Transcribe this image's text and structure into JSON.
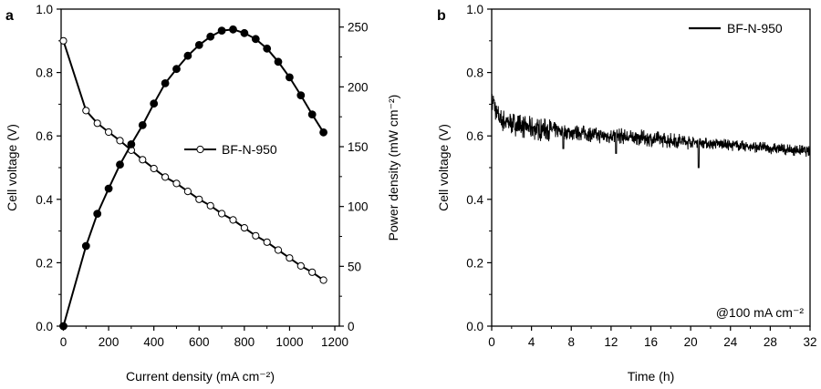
{
  "chart_data": [
    {
      "panel": "a",
      "type": "line",
      "title": "",
      "xlabel": "Current density (mA cm⁻²)",
      "ylabel": "Cell voltage (V)",
      "y2label": "Power density (mW cm⁻²)",
      "xlim": [
        -10,
        1220
      ],
      "ylim": [
        0,
        1.0
      ],
      "y2lim": [
        0,
        265
      ],
      "xticks": [
        "0",
        "200",
        "400",
        "600",
        "800",
        "1000",
        "1200"
      ],
      "yticks": [
        "0.0",
        "0.2",
        "0.4",
        "0.6",
        "0.8",
        "1.0"
      ],
      "y2ticks": [
        "0",
        "50",
        "100",
        "150",
        "200",
        "250"
      ],
      "legend": {
        "label": "BF-N-950",
        "placement": "center-right"
      },
      "series": [
        {
          "name": "BF-N-950",
          "axis": "left",
          "marker": "open-circle",
          "x": [
            0,
            100,
            150,
            200,
            250,
            300,
            350,
            400,
            450,
            500,
            550,
            600,
            650,
            700,
            750,
            800,
            850,
            900,
            950,
            1000,
            1050,
            1100,
            1150
          ],
          "y": [
            0.9,
            0.68,
            0.64,
            0.612,
            0.585,
            0.555,
            0.525,
            0.497,
            0.47,
            0.45,
            0.425,
            0.4,
            0.38,
            0.355,
            0.335,
            0.31,
            0.285,
            0.265,
            0.24,
            0.215,
            0.19,
            0.17,
            0.145
          ]
        },
        {
          "axis": "right",
          "marker": "filled-circle",
          "x": [
            0,
            100,
            150,
            200,
            250,
            300,
            350,
            400,
            450,
            500,
            550,
            600,
            650,
            700,
            750,
            800,
            850,
            900,
            950,
            1000,
            1050,
            1100,
            1150
          ],
          "y": [
            0,
            67,
            94,
            115,
            135,
            152,
            168,
            186,
            203,
            215,
            226,
            235,
            242,
            247,
            248,
            245,
            240,
            232,
            221,
            208,
            193,
            177,
            162
          ]
        }
      ]
    },
    {
      "panel": "b",
      "type": "line",
      "title": "",
      "xlabel": "Time (h)",
      "ylabel": "Cell voltage (V)",
      "xlim": [
        0,
        32
      ],
      "ylim": [
        0,
        1.0
      ],
      "xticks": [
        "0",
        "4",
        "8",
        "12",
        "16",
        "20",
        "24",
        "28",
        "32"
      ],
      "yticks": [
        "0.0",
        "0.2",
        "0.4",
        "0.6",
        "0.8",
        "1.0"
      ],
      "legend": {
        "label": "BF-N-950",
        "placement": "top-right"
      },
      "annotation": "@100 mA cm⁻²",
      "series": [
        {
          "name": "BF-N-950",
          "t": [
            0,
            0.2,
            0.5,
            1,
            2,
            3,
            4,
            5,
            6,
            7,
            8,
            9,
            10,
            11,
            12,
            13,
            14,
            15,
            16,
            17,
            18,
            19,
            20,
            21,
            22,
            23,
            24,
            25,
            26,
            27,
            28,
            29,
            30,
            31,
            32
          ],
          "v": [
            0.7,
            0.71,
            0.67,
            0.65,
            0.64,
            0.63,
            0.625,
            0.62,
            0.62,
            0.615,
            0.61,
            0.61,
            0.605,
            0.6,
            0.6,
            0.6,
            0.595,
            0.595,
            0.59,
            0.59,
            0.585,
            0.585,
            0.58,
            0.58,
            0.575,
            0.575,
            0.57,
            0.57,
            0.565,
            0.565,
            0.56,
            0.56,
            0.555,
            0.555,
            0.55
          ],
          "noise_amplitude": 0.03,
          "dips": [
            {
              "t": 7.2,
              "v": 0.56
            },
            {
              "t": 12.5,
              "v": 0.545
            },
            {
              "t": 20.8,
              "v": 0.5
            }
          ]
        }
      ]
    }
  ]
}
